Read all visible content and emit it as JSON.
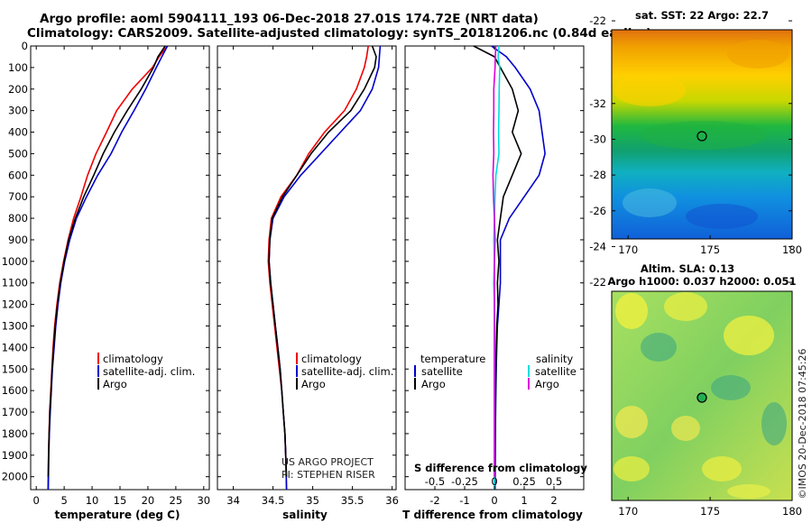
{
  "title": {
    "line1": "Argo profile: aoml 5904111_193 06-Dec-2018 27.01S 174.72E (NRT data)",
    "line2": "Climatology: CARS2009. Satellite-adjusted climatology: synTS_20181206.nc (0.84d earlier)"
  },
  "colors": {
    "climatology": "#ee0000",
    "satellite": "#0000cc",
    "argo": "#000000",
    "sat_s": "#00dddd",
    "argo_s": "#dd00dd"
  },
  "depth_ticks": [
    "0",
    "100",
    "200",
    "300",
    "400",
    "500",
    "600",
    "700",
    "800",
    "900",
    "1000",
    "1100",
    "1200",
    "1300",
    "1400",
    "1500",
    "1600",
    "1700",
    "1800",
    "1900",
    "2000"
  ],
  "panels": {
    "temperature": {
      "xlabel": "temperature (deg C)",
      "ticks": [
        "0",
        "5",
        "10",
        "15",
        "20",
        "25",
        "30"
      ]
    },
    "salinity": {
      "xlabel": "salinity",
      "ticks": [
        "34",
        "34.5",
        "35",
        "35.5",
        "36"
      ]
    },
    "difference": {
      "xlabel": "T difference from climatology",
      "ticks": [
        "-2",
        "-1",
        "0",
        "1",
        "2"
      ],
      "s_label": "S difference from climatology",
      "s_ticks": [
        "-0.5",
        "-0.25",
        "0",
        "0.25",
        "0.5"
      ]
    }
  },
  "legend": {
    "climatology": "climatology",
    "satellite": "satellite-adj. clim.",
    "argo": "Argo"
  },
  "diff_legend": {
    "temperature": "temperature",
    "salinity": "salinity",
    "satellite": "satellite",
    "argo": "Argo"
  },
  "credits": {
    "project": "US ARGO PROJECT",
    "pi": "PI: STEPHEN RISER"
  },
  "maps": {
    "sst": {
      "title": "sat. SST: 22 Argo: 22.7"
    },
    "sla": {
      "title1": "Altim. SLA: 0.13",
      "title2": "Argo h1000: 0.037 h2000: 0.051"
    },
    "lat_ticks": [
      "-22",
      "-24",
      "-26",
      "-28",
      "-30",
      "-32"
    ],
    "lon_ticks": [
      "170",
      "175",
      "180"
    ],
    "argo_position": {
      "lat": -27.01,
      "lon": 174.72
    }
  },
  "stamp": "©IMOS 20-Dec-2018 07:45:26",
  "chart_data": [
    {
      "type": "line",
      "title": "temperature (deg C)",
      "xlabel": "temperature (deg C)",
      "ylabel": "depth",
      "xlim": [
        -1,
        31
      ],
      "ylim": [
        2060,
        0
      ],
      "series": [
        {
          "name": "climatology",
          "x": [
            23.5,
            22,
            20.8,
            17.2,
            14.4,
            12.6,
            10.7,
            9.2,
            8,
            6.7,
            5.7,
            4.9,
            4.2,
            3.7,
            3.3,
            3,
            2.8,
            2.6,
            2.4,
            2.3,
            2.2,
            2.1
          ],
          "depth": [
            0,
            50,
            100,
            200,
            300,
            400,
            500,
            600,
            700,
            800,
            900,
            1000,
            1100,
            1200,
            1300,
            1400,
            1500,
            1600,
            1700,
            1800,
            1900,
            2060
          ]
        },
        {
          "name": "satellite-adj. clim.",
          "x": [
            23.5,
            22.5,
            21.5,
            19.6,
            17.5,
            15.3,
            13.4,
            11,
            9,
            7.2,
            6,
            5.1,
            4.4,
            3.9,
            3.5,
            3.2,
            2.9,
            2.7,
            2.5,
            2.35,
            2.25,
            2.15
          ],
          "depth": [
            0,
            50,
            100,
            200,
            300,
            400,
            500,
            600,
            700,
            800,
            900,
            1000,
            1100,
            1200,
            1300,
            1400,
            1500,
            1600,
            1700,
            1800,
            1900,
            2060
          ]
        },
        {
          "name": "Argo",
          "x": [
            23.1,
            21.8,
            21,
            18.8,
            16.3,
            14,
            12,
            10.3,
            8.5,
            7,
            5.8,
            5,
            4.3,
            3.8,
            3.4,
            3.1,
            2.85,
            2.65,
            2.45,
            2.3,
            2.2,
            2.15
          ],
          "depth": [
            0,
            50,
            100,
            200,
            300,
            400,
            500,
            600,
            700,
            800,
            900,
            1000,
            1100,
            1200,
            1300,
            1400,
            1500,
            1600,
            1700,
            1800,
            1900,
            2000
          ]
        }
      ]
    },
    {
      "type": "line",
      "title": "salinity",
      "xlabel": "salinity",
      "ylabel": "depth",
      "xlim": [
        33.8,
        36.05
      ],
      "ylim": [
        2060,
        0
      ],
      "series": [
        {
          "name": "climatology",
          "x": [
            35.7,
            35.68,
            35.65,
            35.55,
            35.4,
            35.15,
            34.95,
            34.8,
            34.6,
            34.48,
            34.45,
            34.44,
            34.46,
            34.49,
            34.52,
            34.55,
            34.58,
            34.61,
            34.63,
            34.65,
            34.66,
            34.67
          ],
          "depth": [
            0,
            50,
            100,
            200,
            300,
            400,
            500,
            600,
            700,
            800,
            900,
            1000,
            1100,
            1200,
            1300,
            1400,
            1500,
            1600,
            1700,
            1800,
            1900,
            2060
          ]
        },
        {
          "name": "satellite-adj. clim.",
          "x": [
            35.85,
            35.84,
            35.83,
            35.75,
            35.6,
            35.35,
            35.1,
            34.85,
            34.64,
            34.5,
            34.46,
            34.45,
            34.47,
            34.5,
            34.53,
            34.56,
            34.59,
            34.61,
            34.63,
            34.65,
            34.66,
            34.67
          ],
          "depth": [
            0,
            50,
            100,
            200,
            300,
            400,
            500,
            600,
            700,
            800,
            900,
            1000,
            1100,
            1200,
            1300,
            1400,
            1500,
            1600,
            1700,
            1800,
            1900,
            2060
          ]
        },
        {
          "name": "Argo",
          "x": [
            35.75,
            35.8,
            35.78,
            35.65,
            35.48,
            35.2,
            34.98,
            34.8,
            34.62,
            34.49,
            34.46,
            34.45,
            34.47,
            34.5,
            34.53,
            34.56,
            34.59,
            34.61,
            34.63,
            34.65,
            34.66,
            34.67
          ],
          "depth": [
            0,
            50,
            100,
            200,
            300,
            400,
            500,
            600,
            700,
            800,
            900,
            1000,
            1100,
            1200,
            1300,
            1400,
            1500,
            1600,
            1700,
            1800,
            1900,
            2000
          ]
        }
      ]
    },
    {
      "type": "line",
      "title": "T difference from climatology",
      "xlabel": "T difference from climatology",
      "ylabel": "depth",
      "xlim": [
        -3,
        3
      ],
      "ylim": [
        2060,
        0
      ],
      "series": [
        {
          "name": "temperature satellite",
          "x": [
            -0.1,
            0.4,
            0.7,
            1.2,
            1.5,
            1.6,
            1.7,
            1.5,
            1,
            0.5,
            0.2,
            0.2,
            0.2,
            0.15,
            0.1,
            0.08,
            0.06,
            0.05,
            0.04,
            0.03,
            0.03,
            0.02
          ],
          "depth": [
            0,
            50,
            100,
            200,
            300,
            400,
            500,
            600,
            700,
            800,
            900,
            1000,
            1100,
            1200,
            1300,
            1400,
            1500,
            1600,
            1700,
            1800,
            1900,
            2060
          ]
        },
        {
          "name": "temperature Argo",
          "x": [
            -0.7,
            0,
            0.2,
            0.6,
            0.8,
            0.6,
            0.9,
            0.6,
            0.3,
            0.2,
            0.1,
            0.15,
            0.1,
            0.12,
            0.08,
            0.06,
            0.05,
            0.04,
            0.03,
            0.03,
            0.02,
            0.02
          ],
          "depth": [
            0,
            50,
            100,
            200,
            300,
            400,
            500,
            600,
            700,
            800,
            900,
            1000,
            1100,
            1200,
            1300,
            1400,
            1500,
            1600,
            1700,
            1800,
            1900,
            2000
          ]
        },
        {
          "name": "salinity satellite",
          "x": [
            0.15,
            0.12,
            0.18,
            0.16,
            0.15,
            0.14,
            0.15,
            0.05,
            0.02,
            0,
            -0.02,
            0,
            -0.02,
            0,
            0,
            0,
            0,
            0,
            0,
            0,
            0,
            0
          ],
          "depth": [
            0,
            50,
            100,
            200,
            300,
            400,
            500,
            600,
            700,
            800,
            900,
            1000,
            1100,
            1200,
            1300,
            1400,
            1500,
            1600,
            1700,
            1800,
            1900,
            2060
          ]
        },
        {
          "name": "salinity Argo",
          "x": [
            0.05,
            0.03,
            0.02,
            -0.02,
            -0.02,
            -0.03,
            -0.02,
            -0.05,
            -0.03,
            0,
            0.02,
            0,
            0,
            0,
            0,
            0,
            0,
            0,
            0,
            0,
            0,
            0
          ],
          "depth": [
            0,
            50,
            100,
            200,
            300,
            400,
            500,
            600,
            700,
            800,
            900,
            1000,
            1100,
            1200,
            1300,
            1400,
            1500,
            1600,
            1700,
            1800,
            1900,
            2000
          ]
        }
      ]
    }
  ]
}
